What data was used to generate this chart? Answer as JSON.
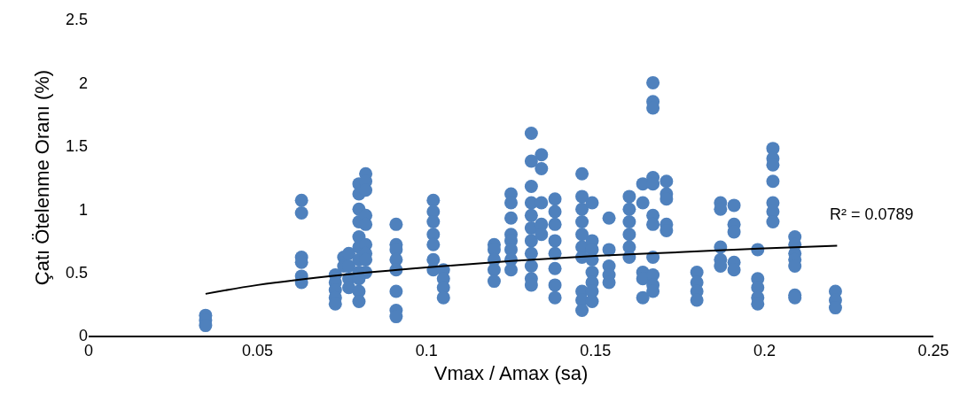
{
  "chart_data": {
    "type": "scatter",
    "xlabel": "Vmax / Amax (sa)",
    "ylabel": "Çatı Ötelenme Oranı (%)",
    "xlim": [
      0,
      0.25
    ],
    "ylim": [
      0,
      2.5
    ],
    "xticks": [
      0,
      0.05,
      0.1,
      0.15,
      0.2,
      0.25
    ],
    "yticks": [
      0,
      0.5,
      1,
      1.5,
      2,
      2.5
    ],
    "grid": false,
    "marker": "circle",
    "annotations": [
      "R² = 0.0789"
    ],
    "series": [
      {
        "color": "#4f81bd",
        "x": [
          0.0346,
          0.0346,
          0.0346,
          0.063,
          0.063,
          0.063,
          0.063,
          0.063,
          0.063,
          0.073,
          0.073,
          0.073,
          0.073,
          0.073,
          0.0755,
          0.0755,
          0.077,
          0.077,
          0.077,
          0.077,
          0.08,
          0.08,
          0.08,
          0.08,
          0.08,
          0.08,
          0.08,
          0.08,
          0.08,
          0.08,
          0.08,
          0.082,
          0.082,
          0.082,
          0.082,
          0.082,
          0.082,
          0.082,
          0.082,
          0.082,
          0.091,
          0.091,
          0.091,
          0.091,
          0.091,
          0.091,
          0.091,
          0.091,
          0.102,
          0.102,
          0.102,
          0.102,
          0.102,
          0.102,
          0.102,
          0.105,
          0.105,
          0.105,
          0.105,
          0.12,
          0.12,
          0.12,
          0.12,
          0.12,
          0.125,
          0.125,
          0.125,
          0.125,
          0.125,
          0.125,
          0.125,
          0.125,
          0.131,
          0.131,
          0.131,
          0.131,
          0.131,
          0.131,
          0.131,
          0.131,
          0.131,
          0.131,
          0.131,
          0.134,
          0.134,
          0.134,
          0.134,
          0.134,
          0.138,
          0.138,
          0.138,
          0.138,
          0.138,
          0.138,
          0.138,
          0.138,
          0.146,
          0.146,
          0.146,
          0.146,
          0.146,
          0.146,
          0.146,
          0.146,
          0.146,
          0.146,
          0.149,
          0.149,
          0.149,
          0.149,
          0.149,
          0.149,
          0.149,
          0.149,
          0.154,
          0.154,
          0.154,
          0.154,
          0.154,
          0.16,
          0.16,
          0.16,
          0.16,
          0.16,
          0.16,
          0.164,
          0.164,
          0.164,
          0.164,
          0.164,
          0.167,
          0.167,
          0.167,
          0.167,
          0.167,
          0.167,
          0.167,
          0.167,
          0.167,
          0.167,
          0.167,
          0.171,
          0.171,
          0.171,
          0.171,
          0.171,
          0.18,
          0.18,
          0.18,
          0.18,
          0.187,
          0.187,
          0.187,
          0.187,
          0.187,
          0.191,
          0.191,
          0.191,
          0.191,
          0.191,
          0.198,
          0.198,
          0.198,
          0.198,
          0.198,
          0.2025,
          0.2025,
          0.2025,
          0.2025,
          0.2025,
          0.2025,
          0.2025,
          0.209,
          0.209,
          0.209,
          0.209,
          0.209,
          0.209,
          0.209,
          0.221,
          0.221,
          0.221
        ],
        "values": [
          0.16,
          0.12,
          0.08,
          1.07,
          0.97,
          0.62,
          0.58,
          0.47,
          0.42,
          0.48,
          0.42,
          0.36,
          0.3,
          0.25,
          0.62,
          0.55,
          0.65,
          0.55,
          0.45,
          0.38,
          1.2,
          1.12,
          1.0,
          0.9,
          0.78,
          0.7,
          0.6,
          0.5,
          0.45,
          0.35,
          0.27,
          1.28,
          1.22,
          1.15,
          0.95,
          0.88,
          0.72,
          0.65,
          0.6,
          0.5,
          0.88,
          0.72,
          0.68,
          0.6,
          0.52,
          0.35,
          0.2,
          0.15,
          1.07,
          0.98,
          0.9,
          0.8,
          0.72,
          0.6,
          0.52,
          0.52,
          0.45,
          0.38,
          0.3,
          0.72,
          0.68,
          0.6,
          0.52,
          0.43,
          1.12,
          1.05,
          0.93,
          0.8,
          0.75,
          0.68,
          0.6,
          0.52,
          1.6,
          1.38,
          1.18,
          1.05,
          0.95,
          0.85,
          0.75,
          0.65,
          0.55,
          0.45,
          0.4,
          1.43,
          1.32,
          1.05,
          0.88,
          0.8,
          1.08,
          0.98,
          0.88,
          0.75,
          0.65,
          0.53,
          0.4,
          0.3,
          1.28,
          1.1,
          1.0,
          0.9,
          0.8,
          0.7,
          0.62,
          0.35,
          0.28,
          0.2,
          1.05,
          0.75,
          0.68,
          0.6,
          0.5,
          0.42,
          0.35,
          0.27,
          0.93,
          0.68,
          0.55,
          0.48,
          0.42,
          1.1,
          1.0,
          0.9,
          0.8,
          0.7,
          0.62,
          1.2,
          1.05,
          0.5,
          0.45,
          0.3,
          2.0,
          1.85,
          1.8,
          1.25,
          1.2,
          0.95,
          0.88,
          0.62,
          0.48,
          0.4,
          0.35,
          1.22,
          1.12,
          1.08,
          0.88,
          0.83,
          0.5,
          0.42,
          0.35,
          0.28,
          1.05,
          1.0,
          0.7,
          0.6,
          0.55,
          1.03,
          0.88,
          0.82,
          0.58,
          0.52,
          0.68,
          0.45,
          0.38,
          0.3,
          0.25,
          1.48,
          1.4,
          1.35,
          1.22,
          1.05,
          0.98,
          0.9,
          0.78,
          0.72,
          0.65,
          0.6,
          0.55,
          0.32,
          0.3,
          0.35,
          0.28,
          0.22
        ]
      },
      {
        "type": "line",
        "color": "#000000",
        "marker": "none",
        "line_style": "solid",
        "x": [
          0.0346,
          0.05,
          0.075,
          0.1,
          0.125,
          0.15,
          0.175,
          0.2,
          0.2215
        ],
        "values": [
          0.33,
          0.4,
          0.48,
          0.54,
          0.59,
          0.63,
          0.66,
          0.69,
          0.71
        ]
      }
    ]
  }
}
